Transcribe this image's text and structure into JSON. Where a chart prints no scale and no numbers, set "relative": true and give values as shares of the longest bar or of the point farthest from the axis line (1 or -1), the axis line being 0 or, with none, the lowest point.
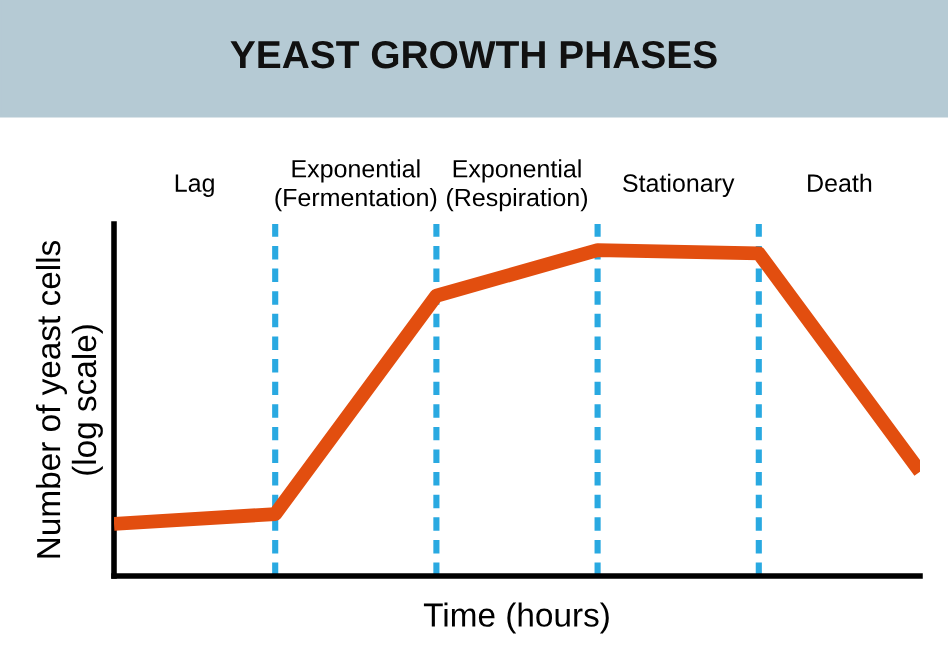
{
  "chart_data": {
    "type": "line",
    "title": "YEAST GROWTH PHASES",
    "xlabel": "Time (hours)",
    "ylabel": "Number of yeast cells\n(log scale)",
    "relative": true,
    "categories": [
      null,
      null,
      null,
      null,
      null,
      null
    ],
    "series": [
      {
        "color": "#e24e0f",
        "values": [
          0.16,
          0.19,
          0.86,
          1,
          0.99,
          0.32
        ]
      }
    ],
    "grid": "x",
    "annotations": [
      "Lag",
      "Exponential\n(Fermentation)",
      "Exponential\n(Respiration)",
      "Stationary",
      "Death"
    ]
  }
}
